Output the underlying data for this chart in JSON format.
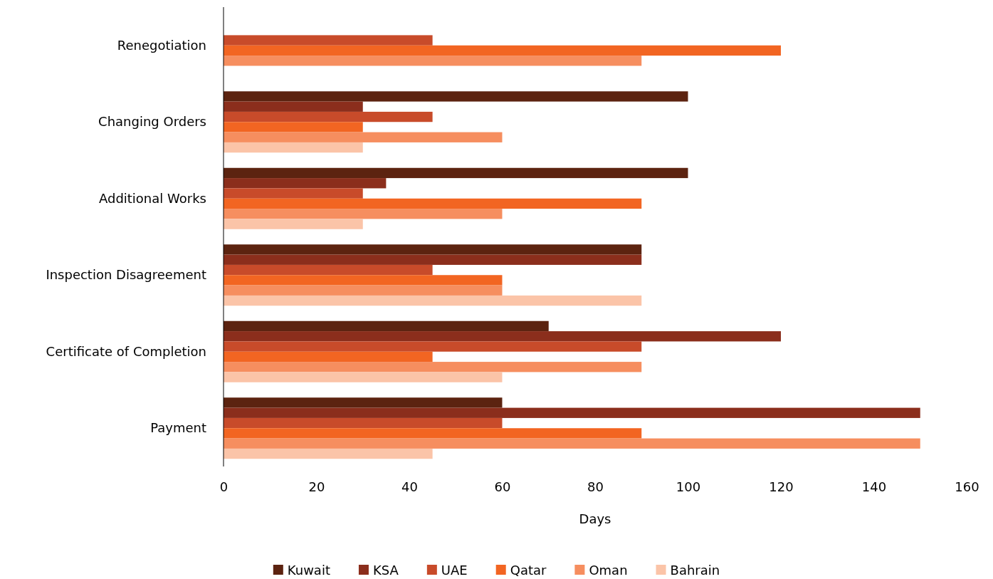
{
  "chart_data": {
    "type": "bar",
    "orientation": "horizontal",
    "xlabel": "Days",
    "categories": [
      "Renegotiation",
      "Changing Orders",
      "Additional Works",
      "Inspection Disagreement",
      "Certificate of Completion",
      "Payment"
    ],
    "series": [
      {
        "name": "Kuwait",
        "color": "#5c2310",
        "values": [
          null,
          100,
          100,
          90,
          70,
          60
        ]
      },
      {
        "name": "KSA",
        "color": "#8b2e1c",
        "values": [
          null,
          30,
          35,
          90,
          120,
          150
        ]
      },
      {
        "name": "UAE",
        "color": "#c84b2a",
        "values": [
          45,
          45,
          30,
          45,
          90,
          60
        ]
      },
      {
        "name": "Qatar",
        "color": "#f26522",
        "values": [
          120,
          30,
          90,
          60,
          45,
          90
        ]
      },
      {
        "name": "Oman",
        "color": "#f68e5f",
        "values": [
          90,
          60,
          60,
          60,
          90,
          150
        ]
      },
      {
        "name": "Bahrain",
        "color": "#fbc4a8",
        "values": [
          null,
          30,
          30,
          90,
          60,
          45
        ]
      }
    ],
    "xlim": [
      0,
      160
    ],
    "xticks": [
      0,
      20,
      40,
      60,
      80,
      100,
      120,
      140,
      160
    ],
    "grid": false,
    "legend": "bottom"
  }
}
